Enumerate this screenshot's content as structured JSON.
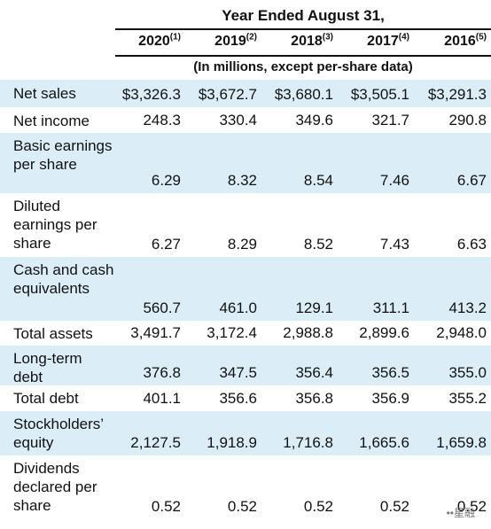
{
  "header": {
    "title": "Year Ended August 31,",
    "subtitle": "(In millions, except per-share data)",
    "years": [
      {
        "year": "2020",
        "note": "(1)"
      },
      {
        "year": "2019",
        "note": "(2)"
      },
      {
        "year": "2018",
        "note": "(3)"
      },
      {
        "year": "2017",
        "note": "(4)"
      },
      {
        "year": "2016",
        "note": "(5)"
      }
    ]
  },
  "rows": [
    {
      "label": "Net sales",
      "shaded": true,
      "values": [
        "$3,326.3",
        "$3,672.7",
        "$3,680.1",
        "$3,505.1",
        "$3,291.3"
      ]
    },
    {
      "label": "Net income",
      "shaded": false,
      "values": [
        "248.3",
        "330.4",
        "349.6",
        "321.7",
        "290.8"
      ]
    },
    {
      "label": "Basic earnings per share",
      "shaded": true,
      "values": [
        "6.29",
        "8.32",
        "8.54",
        "7.46",
        "6.67"
      ]
    },
    {
      "label": "Diluted earnings per share",
      "shaded": false,
      "values": [
        "6.27",
        "8.29",
        "8.52",
        "7.43",
        "6.63"
      ]
    },
    {
      "label": "Cash and cash equivalents",
      "shaded": true,
      "values": [
        "560.7",
        "461.0",
        "129.1",
        "311.1",
        "413.2"
      ]
    },
    {
      "label": "Total assets",
      "shaded": false,
      "values": [
        "3,491.7",
        "3,172.4",
        "2,988.8",
        "2,899.6",
        "2,948.0"
      ]
    },
    {
      "label": "Long-term debt",
      "shaded": true,
      "values": [
        "376.8",
        "347.5",
        "356.4",
        "356.5",
        "355.0"
      ]
    },
    {
      "label": "Total debt",
      "shaded": false,
      "values": [
        "401.1",
        "356.6",
        "356.8",
        "356.9",
        "355.2"
      ]
    },
    {
      "label": "Stockholders’ equity",
      "shaded": true,
      "values": [
        "2,127.5",
        "1,918.9",
        "1,716.8",
        "1,665.6",
        "1,659.8"
      ]
    },
    {
      "label": "Dividends declared per share",
      "shaded": false,
      "values": [
        "0.52",
        "0.52",
        "0.52",
        "0.52",
        "0.52"
      ]
    }
  ],
  "watermark": "••星融"
}
